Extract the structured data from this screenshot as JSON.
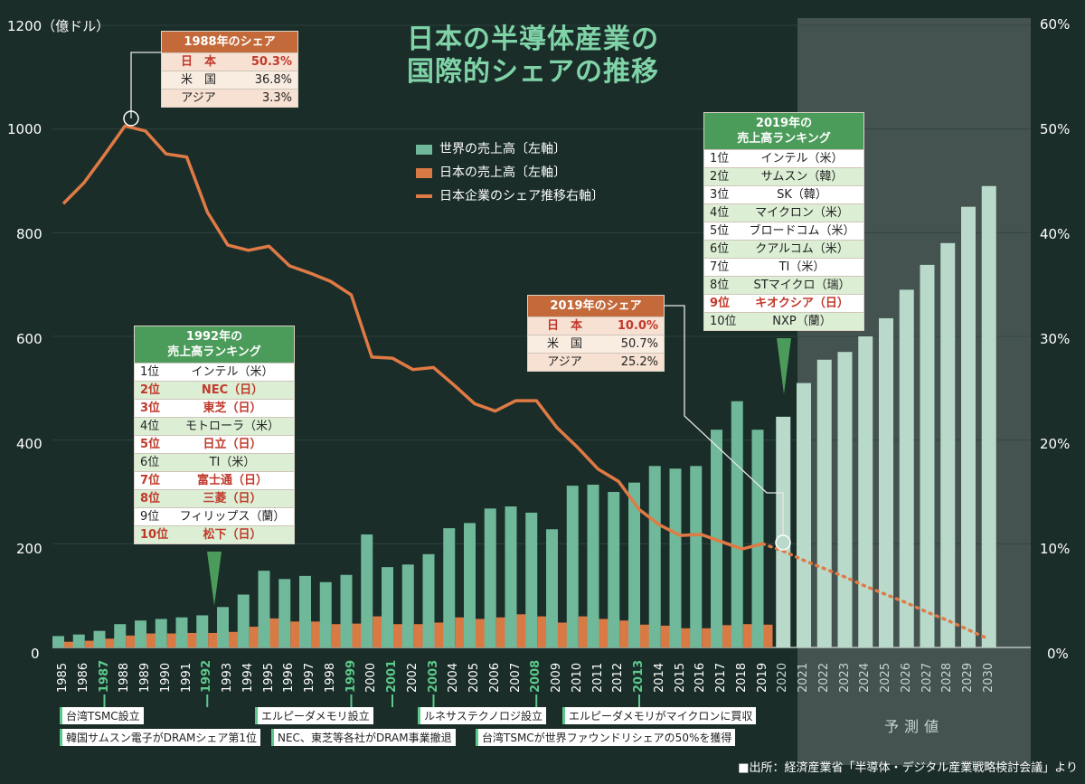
{
  "title_line1": "日本の半導体産業の",
  "title_line2": "国際的シェアの推移",
  "y_left_unit": "1200（億ドル）",
  "y_left_ticks": [
    "1000",
    "800",
    "600",
    "400",
    "200",
    "0"
  ],
  "y_right_ticks": [
    "60%",
    "50%",
    "40%",
    "30%",
    "20%",
    "10%",
    "0%"
  ],
  "legend": {
    "world": "世界の売上高〔左軸〕",
    "japan": "日本の売上高〔左軸〕",
    "share": "日本企業のシェア推移右軸〕"
  },
  "forecast_label": "予測値",
  "source": "■出所：経済産業省「半導体・デジタル産業戦略検討会議」より",
  "share1988": {
    "header": "1988年のシェア",
    "rows": [
      {
        "c": "日　本",
        "v": "50.3%"
      },
      {
        "c": "米　国",
        "v": "36.8%"
      },
      {
        "c": "アジア",
        "v": "3.3%"
      }
    ]
  },
  "share2019": {
    "header": "2019年のシェア",
    "rows": [
      {
        "c": "日　本",
        "v": "10.0%"
      },
      {
        "c": "米　国",
        "v": "50.7%"
      },
      {
        "c": "アジア",
        "v": "25.2%"
      }
    ]
  },
  "rank1992": {
    "header1": "1992年の",
    "header2": "売上高ランキング",
    "rows": [
      {
        "n": "1位",
        "c": "インテル（米）"
      },
      {
        "n": "2位",
        "c": "NEC（日）"
      },
      {
        "n": "3位",
        "c": "東芝（日）"
      },
      {
        "n": "4位",
        "c": "モトローラ（米）"
      },
      {
        "n": "5位",
        "c": "日立（日）"
      },
      {
        "n": "6位",
        "c": "TI（米）"
      },
      {
        "n": "7位",
        "c": "富士通（日）"
      },
      {
        "n": "8位",
        "c": "三菱（日）"
      },
      {
        "n": "9位",
        "c": "フィリップス（蘭）"
      },
      {
        "n": "10位",
        "c": "松下（日）"
      }
    ]
  },
  "rank2019": {
    "header1": "2019年の",
    "header2": "売上高ランキング",
    "rows": [
      {
        "n": "1位",
        "c": "インテル（米）"
      },
      {
        "n": "2位",
        "c": "サムスン（韓）"
      },
      {
        "n": "3位",
        "c": "SK（韓）"
      },
      {
        "n": "4位",
        "c": "マイクロン（米）"
      },
      {
        "n": "5位",
        "c": "ブロードコム（米）"
      },
      {
        "n": "6位",
        "c": "クアルコム（米）"
      },
      {
        "n": "7位",
        "c": "TI（米）"
      },
      {
        "n": "8位",
        "c": "STマイクロ（瑞）"
      },
      {
        "n": "9位",
        "c": "キオクシア（日）"
      },
      {
        "n": "10位",
        "c": "NXP（蘭）"
      }
    ]
  },
  "events": [
    {
      "year": "1987",
      "text": "台湾TSMC設立"
    },
    {
      "year": "1992",
      "text": "韓国サムスン電子がDRAMシェア第1位"
    },
    {
      "year": "1999",
      "text": "エルピーダメモリ設立"
    },
    {
      "year": "2001",
      "text": "NEC、東芝等各社がDRAM事業撤退"
    },
    {
      "year": "2003",
      "text": "ルネサステクノロジ設立"
    },
    {
      "year": "2008",
      "text": "台湾TSMCが世界ファウンドリシェアの50%を獲得"
    },
    {
      "year": "2013",
      "text": "エルピーダメモリがマイクロンに買収"
    }
  ],
  "chart_data": {
    "type": "bar",
    "title": "日本の半導体産業の国際的シェアの推移",
    "categories": [
      "1985",
      "1986",
      "1987",
      "1988",
      "1989",
      "1990",
      "1991",
      "1992",
      "1993",
      "1994",
      "1995",
      "1996",
      "1997",
      "1998",
      "1999",
      "2000",
      "2001",
      "2002",
      "2003",
      "2004",
      "2005",
      "2006",
      "2007",
      "2008",
      "2009",
      "2010",
      "2011",
      "2012",
      "2013",
      "2014",
      "2015",
      "2016",
      "2017",
      "2018",
      "2019",
      "2020",
      "2021",
      "2022",
      "2023",
      "2024",
      "2025",
      "2026",
      "2027",
      "2028",
      "2029",
      "2030"
    ],
    "highlighted_categories": [
      "1987",
      "1992",
      "1999",
      "2001",
      "2003",
      "2008",
      "2013"
    ],
    "forecast_from": "2020",
    "ylim_left": [
      0,
      1200
    ],
    "ylim_right": [
      0,
      60
    ],
    "series": [
      {
        "name": "世界の売上高〔左軸〕",
        "axis": "left",
        "color": "#6fb89a",
        "forecast_color": "#b9d9cb",
        "values": [
          22,
          25,
          32,
          45,
          52,
          55,
          58,
          62,
          78,
          102,
          148,
          132,
          138,
          126,
          140,
          218,
          155,
          160,
          180,
          230,
          240,
          268,
          272,
          260,
          228,
          312,
          314,
          300,
          318,
          350,
          345,
          350,
          420,
          475,
          420,
          445,
          510,
          555,
          570,
          600,
          635,
          690,
          738,
          780,
          850,
          890
        ]
      },
      {
        "name": "日本の売上高〔左軸〕",
        "axis": "left",
        "color": "#d97a45",
        "values": [
          11,
          13,
          17,
          23,
          27,
          27,
          28,
          28,
          30,
          40,
          56,
          50,
          50,
          45,
          46,
          60,
          45,
          45,
          48,
          58,
          55,
          58,
          64,
          60,
          48,
          60,
          55,
          52,
          44,
          42,
          37,
          37,
          43,
          45,
          44,
          null,
          null,
          null,
          null,
          null,
          null,
          null,
          null,
          null,
          null,
          null
        ]
      },
      {
        "name": "日本企業のシェア推移右軸〕",
        "axis": "right",
        "color": "#e07a45",
        "style": "line",
        "forecast_style": "dotted",
        "values": [
          42.8,
          44.8,
          47.5,
          50.3,
          49.8,
          47.6,
          47.3,
          42.0,
          38.8,
          38.3,
          38.7,
          36.8,
          36.1,
          35.3,
          34.0,
          28.0,
          27.9,
          26.8,
          27.0,
          25.3,
          23.5,
          22.8,
          23.8,
          23.8,
          21.2,
          19.3,
          17.2,
          16.0,
          13.3,
          11.8,
          10.8,
          10.9,
          10.2,
          9.5,
          10.0,
          9.3,
          8.4,
          7.6,
          6.8,
          5.9,
          5.1,
          4.3,
          3.4,
          2.6,
          1.7,
          0.8
        ]
      }
    ]
  }
}
